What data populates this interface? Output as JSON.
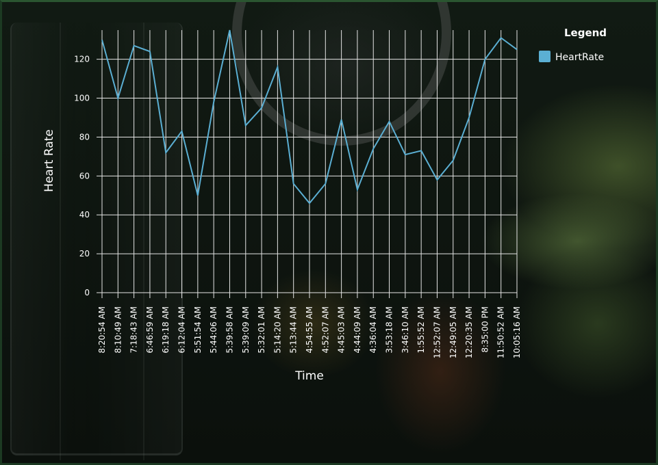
{
  "chart_data": {
    "type": "line",
    "xlabel": "Time",
    "ylabel": "Heart Rate",
    "ylim": [
      0,
      135
    ],
    "yticks": [
      0,
      20,
      40,
      60,
      80,
      100,
      120
    ],
    "grid": true,
    "legend": {
      "title": "Legend",
      "placement": "top-right"
    },
    "categories": [
      "8:20:54 AM",
      "8:10:49 AM",
      "7:18:43 AM",
      "6:46:59 AM",
      "6:19:18 AM",
      "6:12:04 AM",
      "5:51:54 AM",
      "5:44:06 AM",
      "5:39:58 AM",
      "5:39:09 AM",
      "5:32:01 AM",
      "5:14:20 AM",
      "5:13:44 AM",
      "4:54:55 AM",
      "4:52:07 AM",
      "4:45:03 AM",
      "4:44:09 AM",
      "4:36:04 AM",
      "3:53:18 AM",
      "3:46:10 AM",
      "1:55:52 AM",
      "12:52:07 AM",
      "12:49:05 AM",
      "12:20:35 AM",
      "8:35:00 PM",
      "11:50:52 AM",
      "10:05:16 AM"
    ],
    "series": [
      {
        "name": "HeartRate",
        "color": "#5bafd3",
        "values": [
          130,
          100,
          127,
          124,
          72,
          83,
          50,
          98,
          135,
          86,
          95,
          116,
          56,
          46,
          56,
          89,
          53,
          74,
          88,
          71,
          73,
          58,
          68,
          90,
          120,
          131,
          125
        ]
      }
    ]
  }
}
